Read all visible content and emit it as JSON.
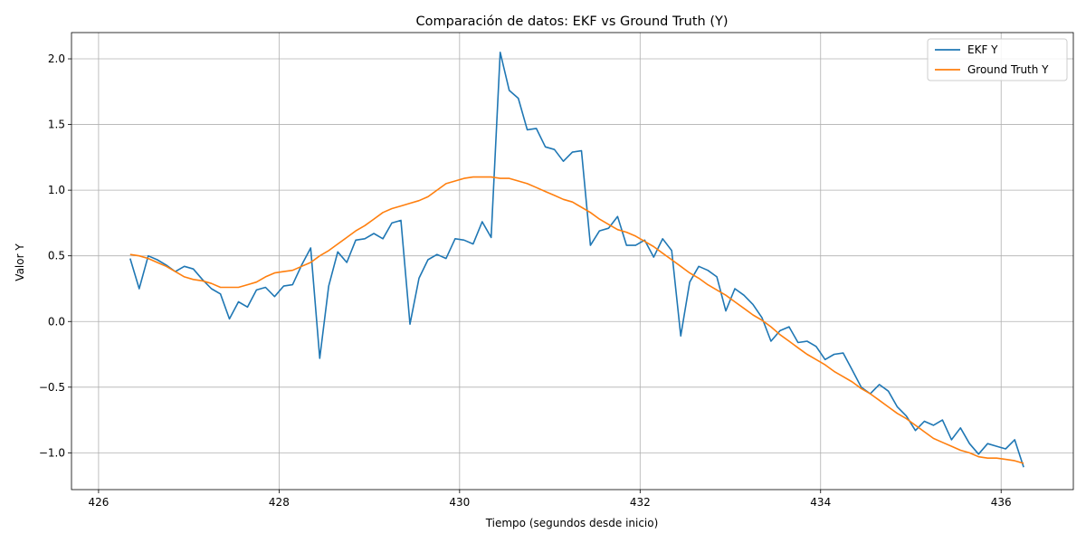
{
  "chart_data": {
    "type": "line",
    "title": "Comparación de datos: EKF vs Ground Truth (Y)",
    "xlabel": "Tiempo (segundos desde inicio)",
    "ylabel": "Valor Y",
    "xlim": [
      425.7,
      436.8
    ],
    "ylim": [
      -1.28,
      2.2
    ],
    "xticks": [
      426,
      428,
      430,
      432,
      434,
      436
    ],
    "yticks": [
      -1.0,
      -0.5,
      0.0,
      0.5,
      1.0,
      1.5,
      2.0
    ],
    "xtick_labels": [
      "426",
      "428",
      "430",
      "432",
      "434",
      "436"
    ],
    "ytick_labels": [
      "−1.0",
      "−0.5",
      "0.0",
      "0.5",
      "1.0",
      "1.5",
      "2.0"
    ],
    "grid": true,
    "legend_position": "top-right",
    "series": [
      {
        "name": "EKF Y",
        "color": "#1f77b4",
        "x": [
          426.35,
          426.45,
          426.55,
          426.65,
          426.75,
          426.85,
          426.95,
          427.05,
          427.15,
          427.25,
          427.35,
          427.45,
          427.55,
          427.65,
          427.75,
          427.85,
          427.95,
          428.05,
          428.15,
          428.25,
          428.35,
          428.45,
          428.55,
          428.65,
          428.75,
          428.85,
          428.95,
          429.05,
          429.15,
          429.25,
          429.35,
          429.45,
          429.55,
          429.65,
          429.75,
          429.85,
          429.95,
          430.05,
          430.15,
          430.25,
          430.35,
          430.45,
          430.55,
          430.65,
          430.75,
          430.85,
          430.95,
          431.05,
          431.15,
          431.25,
          431.35,
          431.45,
          431.55,
          431.65,
          431.75,
          431.85,
          431.95,
          432.05,
          432.15,
          432.25,
          432.35,
          432.45,
          432.55,
          432.65,
          432.75,
          432.85,
          432.95,
          433.05,
          433.15,
          433.25,
          433.35,
          433.45,
          433.55,
          433.65,
          433.75,
          433.85,
          433.95,
          434.05,
          434.15,
          434.25,
          434.35,
          434.45,
          434.55,
          434.65,
          434.75,
          434.85,
          434.95,
          435.05,
          435.15,
          435.25,
          435.35,
          435.45,
          435.55,
          435.65,
          435.75,
          435.85,
          435.95,
          436.05,
          436.15,
          436.25
        ],
        "y": [
          0.48,
          0.25,
          0.5,
          0.47,
          0.43,
          0.38,
          0.42,
          0.4,
          0.32,
          0.25,
          0.21,
          0.02,
          0.15,
          0.11,
          0.24,
          0.26,
          0.19,
          0.27,
          0.28,
          0.43,
          0.56,
          -0.28,
          0.27,
          0.53,
          0.45,
          0.62,
          0.63,
          0.67,
          0.63,
          0.75,
          0.77,
          -0.02,
          0.33,
          0.47,
          0.51,
          0.48,
          0.63,
          0.62,
          0.59,
          0.76,
          0.64,
          2.05,
          1.76,
          1.7,
          1.46,
          1.47,
          1.33,
          1.31,
          1.22,
          1.29,
          1.3,
          0.58,
          0.69,
          0.71,
          0.8,
          0.58,
          0.58,
          0.62,
          0.49,
          0.63,
          0.54,
          -0.11,
          0.3,
          0.42,
          0.39,
          0.34,
          0.08,
          0.25,
          0.2,
          0.13,
          0.03,
          -0.15,
          -0.07,
          -0.04,
          -0.16,
          -0.15,
          -0.19,
          -0.29,
          -0.25,
          -0.24,
          -0.37,
          -0.5,
          -0.55,
          -0.48,
          -0.53,
          -0.65,
          -0.72,
          -0.83,
          -0.76,
          -0.79,
          -0.75,
          -0.9,
          -0.81,
          -0.93,
          -1.01,
          -0.93,
          -0.95,
          -0.97,
          -0.9,
          -1.11
        ]
      },
      {
        "name": "Ground Truth Y",
        "color": "#ff7f0e",
        "x": [
          426.35,
          426.45,
          426.55,
          426.65,
          426.75,
          426.85,
          426.95,
          427.05,
          427.15,
          427.25,
          427.35,
          427.45,
          427.55,
          427.65,
          427.75,
          427.85,
          427.95,
          428.05,
          428.15,
          428.25,
          428.35,
          428.45,
          428.55,
          428.65,
          428.75,
          428.85,
          428.95,
          429.05,
          429.15,
          429.25,
          429.35,
          429.45,
          429.55,
          429.65,
          429.75,
          429.85,
          429.95,
          430.05,
          430.15,
          430.25,
          430.35,
          430.45,
          430.55,
          430.65,
          430.75,
          430.85,
          430.95,
          431.05,
          431.15,
          431.25,
          431.35,
          431.45,
          431.55,
          431.65,
          431.75,
          431.85,
          431.95,
          432.05,
          432.15,
          432.25,
          432.35,
          432.45,
          432.55,
          432.65,
          432.75,
          432.85,
          432.95,
          433.05,
          433.15,
          433.25,
          433.35,
          433.45,
          433.55,
          433.65,
          433.75,
          433.85,
          433.95,
          434.05,
          434.15,
          434.25,
          434.35,
          434.45,
          434.55,
          434.65,
          434.75,
          434.85,
          434.95,
          435.05,
          435.15,
          435.25,
          435.35,
          435.45,
          435.55,
          435.65,
          435.75,
          435.85,
          435.95,
          436.05,
          436.15,
          436.25
        ],
        "y": [
          0.51,
          0.5,
          0.48,
          0.45,
          0.42,
          0.38,
          0.34,
          0.32,
          0.31,
          0.29,
          0.26,
          0.26,
          0.26,
          0.28,
          0.3,
          0.34,
          0.37,
          0.38,
          0.39,
          0.42,
          0.45,
          0.5,
          0.54,
          0.59,
          0.64,
          0.69,
          0.73,
          0.78,
          0.83,
          0.86,
          0.88,
          0.9,
          0.92,
          0.95,
          1.0,
          1.05,
          1.07,
          1.09,
          1.1,
          1.1,
          1.1,
          1.09,
          1.09,
          1.07,
          1.05,
          1.02,
          0.99,
          0.96,
          0.93,
          0.91,
          0.87,
          0.83,
          0.78,
          0.74,
          0.7,
          0.68,
          0.65,
          0.61,
          0.57,
          0.52,
          0.47,
          0.42,
          0.37,
          0.33,
          0.28,
          0.24,
          0.2,
          0.15,
          0.1,
          0.05,
          0.01,
          -0.04,
          -0.1,
          -0.15,
          -0.2,
          -0.25,
          -0.29,
          -0.33,
          -0.38,
          -0.42,
          -0.46,
          -0.51,
          -0.55,
          -0.6,
          -0.65,
          -0.7,
          -0.74,
          -0.79,
          -0.84,
          -0.89,
          -0.92,
          -0.95,
          -0.98,
          -1.0,
          -1.03,
          -1.04,
          -1.04,
          -1.05,
          -1.06,
          -1.08
        ]
      }
    ]
  }
}
